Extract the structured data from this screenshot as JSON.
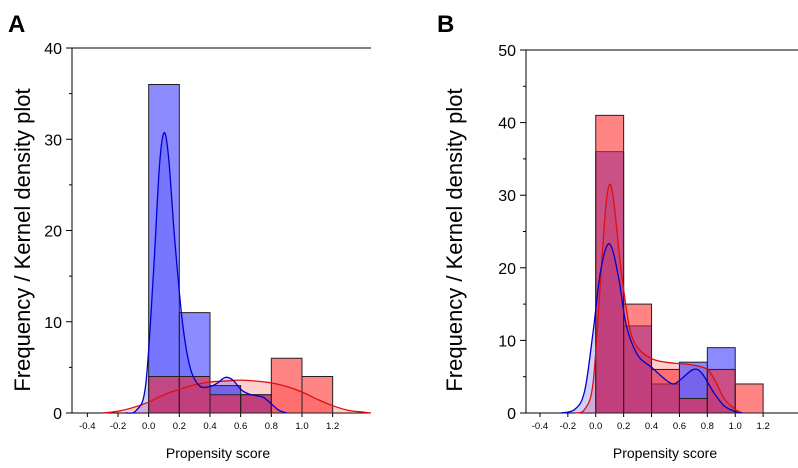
{
  "figure": {
    "ylabel": "Frequency / Kernel density plot"
  },
  "colors": {
    "treated_bar": "#ff2020",
    "control_bar": "#2b2bff",
    "treated_line": "#dd1111",
    "control_line": "#0000cc",
    "overlap_text_note": ""
  },
  "chart_data": [
    {
      "panel_label": "A",
      "type": "bar",
      "xlabel": "Propensity score",
      "ylabel": "Frequency / Kernel density plot",
      "xlim": [
        -0.5,
        1.45
      ],
      "ylim": [
        0,
        40
      ],
      "xticks": [
        "-0.4",
        "-0.2",
        "0.0",
        "0.2",
        "0.4",
        "0.6",
        "0.8",
        "1.0",
        "1.2"
      ],
      "yticks": [
        "0",
        "10",
        "20",
        "30",
        "40"
      ],
      "grid": false,
      "series": [
        {
          "group": "control",
          "bin_edges": [
            0.0,
            0.2,
            0.4,
            0.6,
            0.8,
            1.0
          ],
          "bins": [
            {
              "x0": 0.0,
              "x1": 0.2,
              "count": 36
            },
            {
              "x0": 0.2,
              "x1": 0.4,
              "count": 11
            },
            {
              "x0": 0.4,
              "x1": 0.6,
              "count": 3
            },
            {
              "x0": 0.6,
              "x1": 0.8,
              "count": 2
            },
            {
              "x0": 0.8,
              "x1": 1.0,
              "count": 0
            }
          ],
          "kde": [
            [
              -0.15,
              0
            ],
            [
              -0.08,
              0.3
            ],
            [
              -0.02,
              3
            ],
            [
              0.03,
              15
            ],
            [
              0.07,
              27
            ],
            [
              0.1,
              30.7
            ],
            [
              0.13,
              28
            ],
            [
              0.17,
              19
            ],
            [
              0.22,
              10
            ],
            [
              0.27,
              5
            ],
            [
              0.33,
              3
            ],
            [
              0.4,
              2.9
            ],
            [
              0.45,
              3.3
            ],
            [
              0.5,
              3.9
            ],
            [
              0.55,
              3.6
            ],
            [
              0.6,
              2.6
            ],
            [
              0.65,
              2.1
            ],
            [
              0.7,
              1.9
            ],
            [
              0.75,
              1.7
            ],
            [
              0.8,
              1.0
            ],
            [
              0.85,
              0.3
            ],
            [
              0.9,
              0
            ]
          ]
        },
        {
          "group": "treated",
          "bins": [
            {
              "x0": 0.0,
              "x1": 0.2,
              "count": 4
            },
            {
              "x0": 0.2,
              "x1": 0.4,
              "count": 4
            },
            {
              "x0": 0.4,
              "x1": 0.6,
              "count": 2
            },
            {
              "x0": 0.6,
              "x1": 0.8,
              "count": 2
            },
            {
              "x0": 0.8,
              "x1": 1.0,
              "count": 6
            },
            {
              "x0": 1.0,
              "x1": 1.2,
              "count": 4
            }
          ],
          "kde": [
            [
              -0.3,
              0
            ],
            [
              -0.2,
              0.2
            ],
            [
              -0.1,
              0.6
            ],
            [
              0.0,
              1.2
            ],
            [
              0.1,
              2.0
            ],
            [
              0.2,
              2.6
            ],
            [
              0.3,
              3.1
            ],
            [
              0.4,
              3.4
            ],
            [
              0.5,
              3.5
            ],
            [
              0.6,
              3.6
            ],
            [
              0.7,
              3.5
            ],
            [
              0.8,
              3.3
            ],
            [
              0.9,
              2.9
            ],
            [
              1.0,
              2.3
            ],
            [
              1.1,
              1.5
            ],
            [
              1.2,
              0.8
            ],
            [
              1.3,
              0.3
            ],
            [
              1.4,
              0.1
            ],
            [
              1.45,
              0
            ]
          ]
        }
      ]
    },
    {
      "panel_label": "B",
      "type": "bar",
      "xlabel": "Propensity score",
      "ylabel": "Frequency / Kernel density plot",
      "xlim": [
        -0.5,
        1.45
      ],
      "ylim": [
        0,
        50
      ],
      "xticks": [
        "-0.4",
        "-0.2",
        "0.0",
        "0.2",
        "0.4",
        "0.6",
        "0.8",
        "1.0",
        "1.2"
      ],
      "yticks": [
        "0",
        "10",
        "20",
        "30",
        "40",
        "50"
      ],
      "grid": false,
      "series": [
        {
          "group": "control",
          "bins": [
            {
              "x0": 0.0,
              "x1": 0.2,
              "count": 36
            },
            {
              "x0": 0.2,
              "x1": 0.4,
              "count": 12
            },
            {
              "x0": 0.4,
              "x1": 0.6,
              "count": 4
            },
            {
              "x0": 0.6,
              "x1": 0.8,
              "count": 7
            },
            {
              "x0": 0.8,
              "x1": 1.0,
              "count": 9
            }
          ],
          "kde": [
            [
              -0.25,
              0
            ],
            [
              -0.15,
              0.5
            ],
            [
              -0.08,
              3
            ],
            [
              -0.02,
              11
            ],
            [
              0.03,
              19
            ],
            [
              0.08,
              23
            ],
            [
              0.12,
              22.5
            ],
            [
              0.17,
              18
            ],
            [
              0.22,
              12
            ],
            [
              0.3,
              8
            ],
            [
              0.4,
              6.3
            ],
            [
              0.5,
              4.6
            ],
            [
              0.56,
              4
            ],
            [
              0.62,
              4.8
            ],
            [
              0.7,
              6
            ],
            [
              0.76,
              5.5
            ],
            [
              0.84,
              3
            ],
            [
              0.92,
              1
            ],
            [
              1.0,
              0.2
            ],
            [
              1.05,
              0
            ]
          ]
        },
        {
          "group": "treated",
          "bins": [
            {
              "x0": 0.0,
              "x1": 0.2,
              "count": 41
            },
            {
              "x0": 0.2,
              "x1": 0.4,
              "count": 15
            },
            {
              "x0": 0.4,
              "x1": 0.6,
              "count": 6
            },
            {
              "x0": 0.6,
              "x1": 0.8,
              "count": 2
            },
            {
              "x0": 0.8,
              "x1": 1.0,
              "count": 6
            },
            {
              "x0": 1.0,
              "x1": 1.2,
              "count": 4
            }
          ],
          "kde": [
            [
              -0.15,
              0
            ],
            [
              -0.08,
              0.5
            ],
            [
              -0.02,
              4
            ],
            [
              0.03,
              17
            ],
            [
              0.07,
              28
            ],
            [
              0.1,
              31.5
            ],
            [
              0.13,
              29
            ],
            [
              0.18,
              20
            ],
            [
              0.24,
              12
            ],
            [
              0.3,
              9
            ],
            [
              0.4,
              7.5
            ],
            [
              0.5,
              7
            ],
            [
              0.6,
              6.8
            ],
            [
              0.7,
              6.6
            ],
            [
              0.8,
              6
            ],
            [
              0.86,
              4.3
            ],
            [
              0.92,
              2
            ],
            [
              1.0,
              0.5
            ],
            [
              1.05,
              0
            ]
          ]
        }
      ]
    }
  ]
}
